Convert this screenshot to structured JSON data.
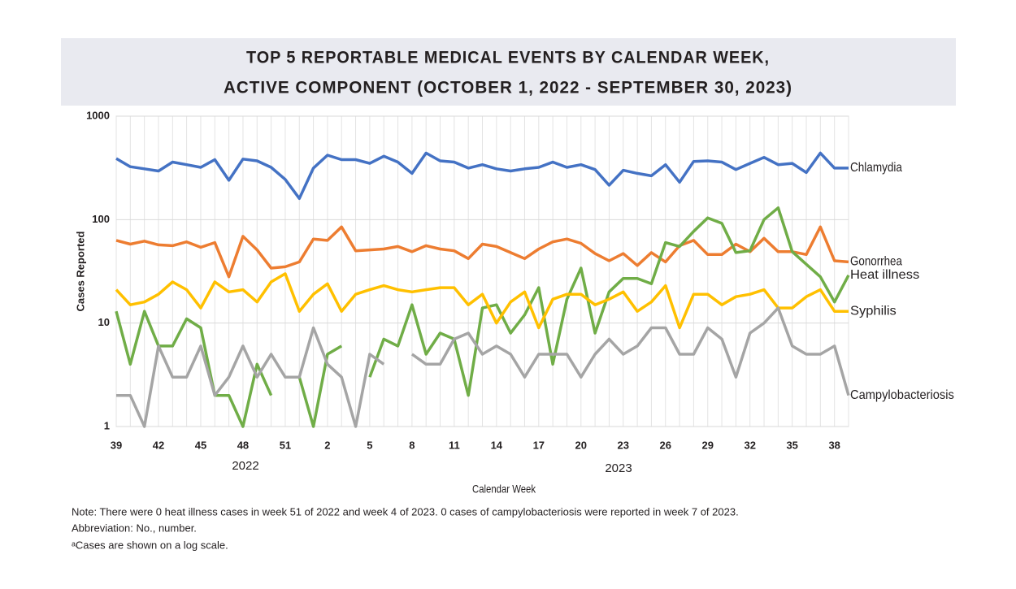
{
  "chart_data": {
    "type": "line",
    "title": "TOP 5 REPORTABLE MEDICAL EVENTS BY CALENDAR WEEK,",
    "subtitle": "ACTIVE COMPONENT (OCTOBER 1, 2022 - SEPTEMBER 30, 2023)",
    "xlabel": "Calendar Week",
    "ylabel": "Cases Reported",
    "year_labels": [
      "2022",
      "2023"
    ],
    "notes": [
      "Note: There were 0 heat illness cases in week 51 of 2022 and week 4 of 2023. 0 cases of campylobacteriosis were reported in week 7 of 2023.",
      "Abbreviation: No., number.",
      "ᵃCases are shown on a log scale."
    ],
    "categories": [
      "39",
      null,
      null,
      "42",
      null,
      null,
      "45",
      null,
      null,
      "48",
      null,
      null,
      "51",
      null,
      null,
      "2",
      null,
      null,
      "5",
      null,
      null,
      "8",
      null,
      null,
      "11",
      null,
      null,
      "14",
      null,
      null,
      "17",
      null,
      null,
      "20",
      null,
      null,
      "23",
      null,
      null,
      "26",
      null,
      null,
      "29",
      null,
      null,
      "32",
      null,
      null,
      "35",
      null,
      null,
      "38",
      null
    ],
    "log_scale": true,
    "ylim": [
      1,
      1000
    ],
    "yticks": [
      1,
      10,
      100,
      1000
    ],
    "grid": true,
    "legend": "line-end",
    "series": [
      {
        "name": "Chlamydia",
        "color": "#4472c4",
        "values": [
          390,
          325,
          310,
          295,
          360,
          340,
          320,
          380,
          240,
          385,
          370,
          320,
          245,
          160,
          315,
          420,
          380,
          380,
          350,
          410,
          360,
          280,
          440,
          370,
          360,
          315,
          340,
          310,
          295,
          310,
          320,
          360,
          320,
          340,
          305,
          215,
          300,
          280,
          265,
          340,
          230,
          365,
          370,
          360,
          305,
          350,
          400,
          340,
          350,
          285,
          440,
          315,
          315
        ]
      },
      {
        "name": "Gonorrhea",
        "color": "#ed7d31",
        "values": [
          63,
          58,
          62,
          57,
          56,
          61,
          54,
          60,
          28,
          69,
          51,
          34,
          35,
          39,
          65,
          63,
          85,
          50,
          51,
          52,
          55,
          49,
          56,
          52,
          50,
          42,
          58,
          55,
          48,
          42,
          52,
          61,
          65,
          59,
          47,
          40,
          47,
          36,
          48,
          39,
          56,
          63,
          46,
          46,
          58,
          49,
          66,
          49,
          49,
          46,
          85,
          40,
          39
        ]
      },
      {
        "name": "Heat illness",
        "color": "#70ad47",
        "values": [
          13,
          4,
          13,
          6,
          6,
          11,
          9,
          2,
          2,
          1,
          4,
          2,
          null,
          3,
          1,
          5,
          6,
          null,
          3,
          7,
          6,
          15,
          5,
          8,
          7,
          2,
          14,
          15,
          8,
          12,
          22,
          4,
          17,
          34,
          8,
          20,
          27,
          27,
          24,
          60,
          55,
          77,
          104,
          92,
          48,
          50,
          100,
          130,
          49,
          37,
          28,
          16,
          29
        ]
      },
      {
        "name": "Syphilis",
        "color": "#ffc000",
        "values": [
          21,
          15,
          16,
          19,
          25,
          21,
          14,
          25,
          20,
          21,
          16,
          25,
          30,
          13,
          19,
          24,
          13,
          19,
          21,
          23,
          21,
          20,
          21,
          22,
          22,
          15,
          19,
          10,
          16,
          20,
          9,
          17,
          19,
          19,
          15,
          17,
          20,
          13,
          16,
          23,
          9,
          19,
          19,
          15,
          18,
          19,
          21,
          14,
          14,
          18,
          21,
          13,
          13
        ]
      },
      {
        "name": "Campylobacteriosis",
        "color": "#a5a5a5",
        "values": [
          2,
          2,
          1,
          6,
          3,
          3,
          6,
          2,
          3,
          6,
          3,
          5,
          3,
          3,
          9,
          4,
          3,
          1,
          5,
          4,
          null,
          5,
          4,
          4,
          7,
          8,
          5,
          6,
          5,
          3,
          5,
          5,
          5,
          3,
          5,
          7,
          5,
          6,
          9,
          9,
          5,
          5,
          9,
          7,
          3,
          8,
          10,
          14,
          6,
          5,
          5,
          6,
          2
        ]
      }
    ]
  }
}
